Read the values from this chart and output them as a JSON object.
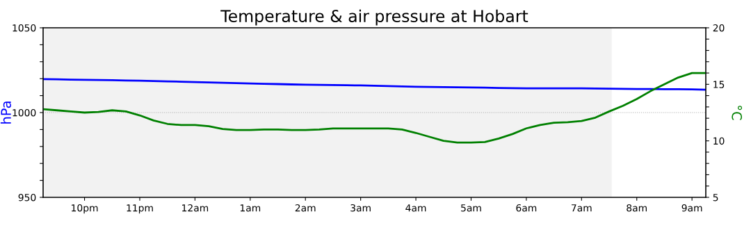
{
  "chart_data": {
    "type": "line",
    "title": "Temperature & air pressure at Hobart",
    "ylabel": "hPa",
    "y2label": "°C",
    "categories": [
      null,
      null,
      null,
      "10pm",
      null,
      null,
      null,
      "11pm",
      null,
      null,
      null,
      "12am",
      null,
      null,
      null,
      "1am",
      null,
      null,
      null,
      "2am",
      null,
      null,
      null,
      "3am",
      null,
      null,
      null,
      "4am",
      null,
      null,
      null,
      "5am",
      null,
      null,
      null,
      "6am",
      null,
      null,
      null,
      "7am",
      null,
      null,
      null,
      "8am",
      null,
      null,
      null,
      "9am",
      null
    ],
    "ylim": [
      950,
      1050
    ],
    "yticks": [
      950,
      {
        "value": 960,
        "label": null
      },
      {
        "value": 970,
        "label": null
      },
      {
        "value": 980,
        "label": null
      },
      {
        "value": 990,
        "label": null
      },
      1000,
      {
        "value": 1010,
        "label": null
      },
      {
        "value": 1020,
        "label": null
      },
      {
        "value": 1030,
        "label": null
      },
      {
        "value": 1040,
        "label": null
      },
      1050
    ],
    "y2lim": [
      5,
      20
    ],
    "y2ticks": [
      5,
      {
        "value": 6,
        "label": null
      },
      {
        "value": 7,
        "label": null
      },
      {
        "value": 8,
        "label": null
      },
      {
        "value": 9,
        "label": null
      },
      10,
      {
        "value": 11,
        "label": null
      },
      {
        "value": 12,
        "label": null
      },
      {
        "value": 13,
        "label": null
      },
      {
        "value": 14,
        "label": null
      },
      15,
      {
        "value": 16,
        "label": null
      },
      {
        "value": 17,
        "label": null
      },
      {
        "value": 18,
        "label": null
      },
      {
        "value": 19,
        "label": null
      },
      20
    ],
    "grid": false,
    "ref_lines": [
      {
        "axis": "y",
        "value": 1000,
        "color": "#aaaaaa",
        "line_style": "dotted"
      }
    ],
    "series": [
      {
        "color": "#0000ff",
        "axis": "y",
        "values": [
          1019.7,
          1019.6,
          1019.4,
          1019.3,
          1019.2,
          1019.1,
          1018.9,
          1018.8,
          1018.6,
          1018.4,
          1018.2,
          1018.0,
          1017.8,
          1017.6,
          1017.4,
          1017.2,
          1017.0,
          1016.8,
          1016.6,
          1016.4,
          1016.3,
          1016.2,
          1016.1,
          1016.0,
          1015.8,
          1015.6,
          1015.4,
          1015.2,
          1015.1,
          1015.0,
          1014.9,
          1014.8,
          1014.7,
          1014.5,
          1014.4,
          1014.3,
          1014.3,
          1014.3,
          1014.3,
          1014.3,
          1014.2,
          1014.1,
          1014.0,
          1013.9,
          1013.9,
          1013.8,
          1013.8,
          1013.7,
          1013.5
        ]
      },
      {
        "color": "#008000",
        "axis": "y2",
        "values": [
          12.8,
          12.7,
          12.6,
          12.5,
          12.55,
          12.7,
          12.6,
          12.25,
          11.8,
          11.5,
          11.4,
          11.4,
          11.3,
          11.05,
          10.95,
          10.95,
          11.0,
          11.0,
          10.95,
          10.95,
          11.0,
          11.1,
          11.1,
          11.1,
          11.1,
          11.1,
          11.0,
          10.7,
          10.35,
          10.0,
          9.85,
          9.85,
          9.9,
          10.2,
          10.6,
          11.1,
          11.4,
          11.6,
          11.65,
          11.75,
          12.05,
          12.6,
          13.1,
          13.7,
          14.4,
          15.0,
          15.6,
          16.0,
          16.0
        ]
      }
    ]
  }
}
